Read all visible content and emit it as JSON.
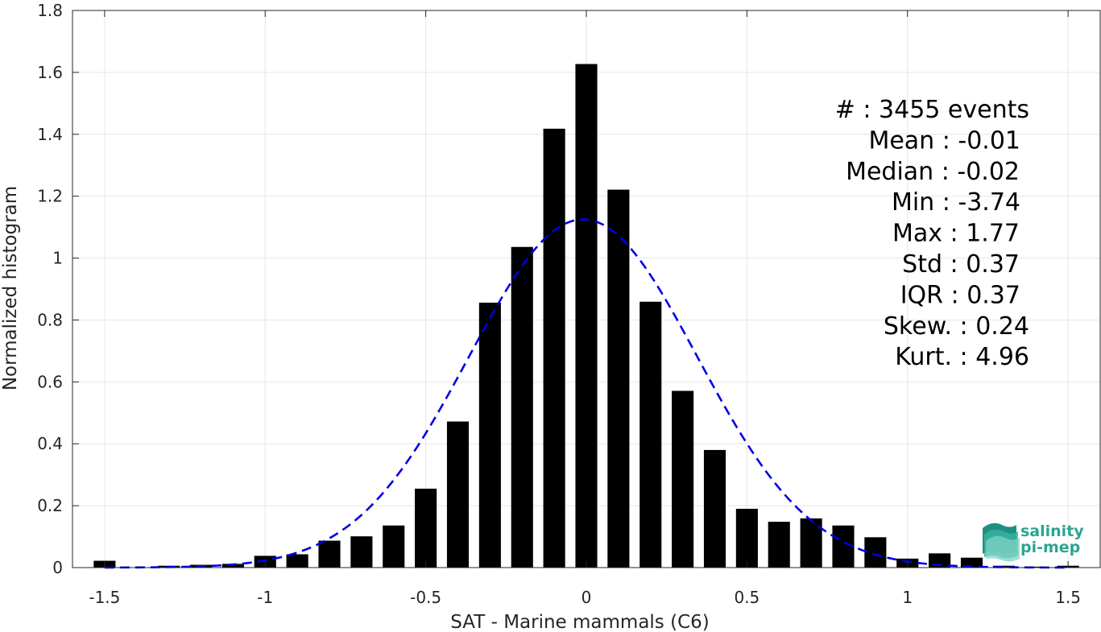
{
  "chart_data": {
    "type": "bar",
    "xlabel": "SAT - Marine mammals (C6)",
    "ylabel": "Normalized histogram",
    "xlim": [
      -1.6,
      1.6
    ],
    "ylim": [
      0,
      1.8
    ],
    "xticks": [
      -1.5,
      -1,
      -0.5,
      0,
      0.5,
      1,
      1.5
    ],
    "xtick_labels": [
      "-1.5",
      "-1",
      "-0.5",
      "0",
      "0.5",
      "1",
      "1.5"
    ],
    "yticks": [
      0,
      0.2,
      0.4,
      0.6,
      0.8,
      1,
      1.2,
      1.4,
      1.6,
      1.8
    ],
    "ytick_labels": [
      "0",
      "0.2",
      "0.4",
      "0.6",
      "0.8",
      "1",
      "1.2",
      "1.4",
      "1.6",
      "1.8"
    ],
    "grid": true,
    "bin_width": 0.1,
    "bars": [
      {
        "x": -1.5,
        "y": 0.022
      },
      {
        "x": -1.4,
        "y": 0.0
      },
      {
        "x": -1.3,
        "y": 0.006
      },
      {
        "x": -1.2,
        "y": 0.009
      },
      {
        "x": -1.1,
        "y": 0.012
      },
      {
        "x": -1.0,
        "y": 0.038
      },
      {
        "x": -0.9,
        "y": 0.043
      },
      {
        "x": -0.8,
        "y": 0.087
      },
      {
        "x": -0.7,
        "y": 0.101
      },
      {
        "x": -0.6,
        "y": 0.136
      },
      {
        "x": -0.5,
        "y": 0.255
      },
      {
        "x": -0.4,
        "y": 0.472
      },
      {
        "x": -0.3,
        "y": 0.856
      },
      {
        "x": -0.2,
        "y": 1.036
      },
      {
        "x": -0.1,
        "y": 1.418
      },
      {
        "x": 0.0,
        "y": 1.627
      },
      {
        "x": 0.1,
        "y": 1.221
      },
      {
        "x": 0.2,
        "y": 0.859
      },
      {
        "x": 0.3,
        "y": 0.571
      },
      {
        "x": 0.4,
        "y": 0.38
      },
      {
        "x": 0.5,
        "y": 0.19
      },
      {
        "x": 0.6,
        "y": 0.148
      },
      {
        "x": 0.7,
        "y": 0.159
      },
      {
        "x": 0.8,
        "y": 0.136
      },
      {
        "x": 0.9,
        "y": 0.098
      },
      {
        "x": 1.0,
        "y": 0.029
      },
      {
        "x": 1.1,
        "y": 0.046
      },
      {
        "x": 1.2,
        "y": 0.032
      },
      {
        "x": 1.3,
        "y": 0.006
      },
      {
        "x": 1.4,
        "y": 0.003
      },
      {
        "x": 1.5,
        "y": 0.006
      }
    ],
    "fit_curve": {
      "style": "dashed",
      "color": "#0000e6",
      "mean": -0.01,
      "std": 0.355,
      "peak": 1.125
    },
    "bar_color": "#000000"
  },
  "stats": [
    "#  : 3455 events",
    "Mean : -0.01",
    "Median : -0.02",
    "Min : -3.74",
    "Max : 1.77",
    "Std : 0.37",
    "IQR : 0.37",
    "Skew. : 0.24",
    "Kurt. : 4.96"
  ],
  "logo": {
    "line1": "salinity",
    "line2": "pi-mep"
  }
}
